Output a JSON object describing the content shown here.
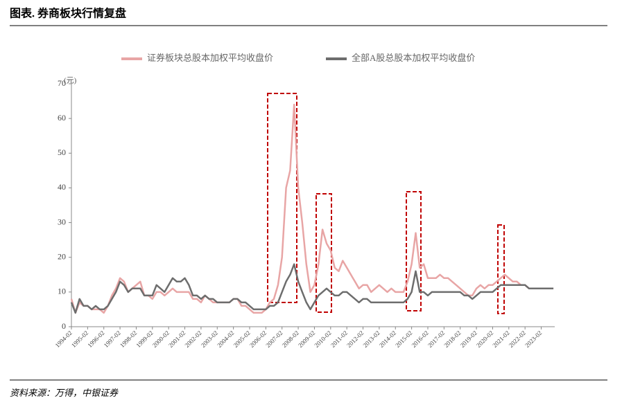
{
  "header": {
    "title": "图表. 券商板块行情复盘"
  },
  "footer": {
    "source": "资料来源：万得，中银证券"
  },
  "chart_data": {
    "type": "line",
    "y_unit": "(元)",
    "x": [
      "1994-02",
      "1994-05",
      "1994-08",
      "1994-11",
      "1995-02",
      "1995-05",
      "1995-08",
      "1995-11",
      "1996-02",
      "1996-05",
      "1996-08",
      "1996-11",
      "1997-02",
      "1997-05",
      "1997-08",
      "1997-11",
      "1998-02",
      "1998-05",
      "1998-08",
      "1998-11",
      "1999-02",
      "1999-05",
      "1999-08",
      "1999-11",
      "2000-02",
      "2000-05",
      "2000-08",
      "2000-11",
      "2001-02",
      "2001-05",
      "2001-08",
      "2001-11",
      "2002-02",
      "2002-05",
      "2002-08",
      "2002-11",
      "2003-02",
      "2003-05",
      "2003-08",
      "2003-11",
      "2004-02",
      "2004-05",
      "2004-08",
      "2004-11",
      "2005-02",
      "2005-05",
      "2005-08",
      "2005-11",
      "2006-02",
      "2006-05",
      "2006-08",
      "2006-11",
      "2007-02",
      "2007-05",
      "2007-08",
      "2007-11",
      "2008-02",
      "2008-05",
      "2008-08",
      "2008-11",
      "2009-02",
      "2009-05",
      "2009-08",
      "2009-11",
      "2010-02",
      "2010-05",
      "2010-08",
      "2010-11",
      "2011-02",
      "2011-05",
      "2011-08",
      "2011-11",
      "2012-02",
      "2012-05",
      "2012-08",
      "2012-11",
      "2013-02",
      "2013-05",
      "2013-08",
      "2013-11",
      "2014-02",
      "2014-05",
      "2014-08",
      "2014-11",
      "2015-02",
      "2015-05",
      "2015-08",
      "2015-11",
      "2016-02",
      "2016-05",
      "2016-08",
      "2016-11",
      "2017-02",
      "2017-05",
      "2017-08",
      "2017-11",
      "2018-02",
      "2018-05",
      "2018-08",
      "2018-11",
      "2019-02",
      "2019-05",
      "2019-08",
      "2019-11",
      "2020-02",
      "2020-05",
      "2020-08",
      "2020-11",
      "2021-02",
      "2021-05",
      "2021-08",
      "2021-11",
      "2022-02",
      "2022-05",
      "2022-08",
      "2022-11",
      "2023-02",
      "2023-05",
      "2023-08",
      "2023-11"
    ],
    "series": [
      {
        "name": "证券板块总股本加权平均收盘价",
        "color": "#e8a5a5",
        "values": [
          8,
          4,
          7,
          6,
          6,
          5,
          5,
          5,
          4,
          6,
          9,
          11,
          14,
          13,
          10,
          11,
          12,
          13,
          9,
          9,
          8,
          10,
          10,
          9,
          10,
          11,
          10,
          10,
          10,
          10,
          8,
          8,
          7,
          9,
          8,
          7,
          7,
          7,
          7,
          7,
          8,
          8,
          6,
          6,
          5,
          4,
          4,
          4,
          5,
          7,
          8,
          12,
          20,
          40,
          45,
          64,
          40,
          30,
          18,
          10,
          12,
          18,
          28,
          24,
          22,
          17,
          16,
          19,
          17,
          15,
          13,
          11,
          12,
          12,
          10,
          11,
          12,
          11,
          10,
          11,
          10,
          10,
          10,
          13,
          18,
          27,
          17,
          18,
          14,
          14,
          14,
          15,
          14,
          14,
          13,
          12,
          11,
          10,
          9,
          9,
          11,
          12,
          11,
          12,
          12,
          13,
          14,
          15,
          14,
          13,
          13,
          12,
          12,
          11,
          11,
          11,
          11,
          11,
          11,
          11
        ]
      },
      {
        "name": "全部A股总股本加权平均收盘价",
        "color": "#6d6d6d",
        "values": [
          7,
          4,
          8,
          6,
          6,
          5,
          6,
          5,
          5,
          6,
          8,
          10,
          13,
          12,
          10,
          11,
          11,
          11,
          9,
          9,
          9,
          12,
          11,
          10,
          12,
          14,
          13,
          13,
          14,
          12,
          9,
          9,
          8,
          9,
          8,
          8,
          7,
          7,
          7,
          7,
          8,
          8,
          7,
          7,
          6,
          5,
          5,
          5,
          5,
          6,
          6,
          7,
          10,
          13,
          15,
          18,
          13,
          10,
          7,
          5,
          7,
          9,
          10,
          11,
          10,
          9,
          9,
          10,
          10,
          9,
          8,
          7,
          8,
          8,
          7,
          7,
          7,
          7,
          7,
          7,
          7,
          7,
          7,
          8,
          10,
          16,
          10,
          10,
          9,
          10,
          10,
          10,
          10,
          10,
          10,
          10,
          10,
          9,
          9,
          8,
          9,
          10,
          10,
          10,
          10,
          11,
          12,
          12,
          12,
          12,
          12,
          12,
          12,
          11,
          11,
          11,
          11,
          11,
          11,
          11
        ]
      }
    ],
    "xlim": [
      "1994-02",
      "2023-12"
    ],
    "xticks": [
      "1994-02",
      "1995-02",
      "1996-02",
      "1997-02",
      "1998-02",
      "1999-02",
      "2000-02",
      "2001-02",
      "2002-02",
      "2003-02",
      "2004-02",
      "2005-02",
      "2006-02",
      "2007-02",
      "2008-02",
      "2009-02",
      "2010-02",
      "2011-02",
      "2012-02",
      "2013-02",
      "2014-02",
      "2015-02",
      "2016-02",
      "2017-02",
      "2018-02",
      "2019-02",
      "2020-02",
      "2021-02",
      "2022-02",
      "2023-02"
    ],
    "ylim": [
      0,
      70
    ],
    "yticks": [
      0,
      10,
      20,
      30,
      40,
      50,
      60,
      70
    ],
    "legend": "top"
  }
}
